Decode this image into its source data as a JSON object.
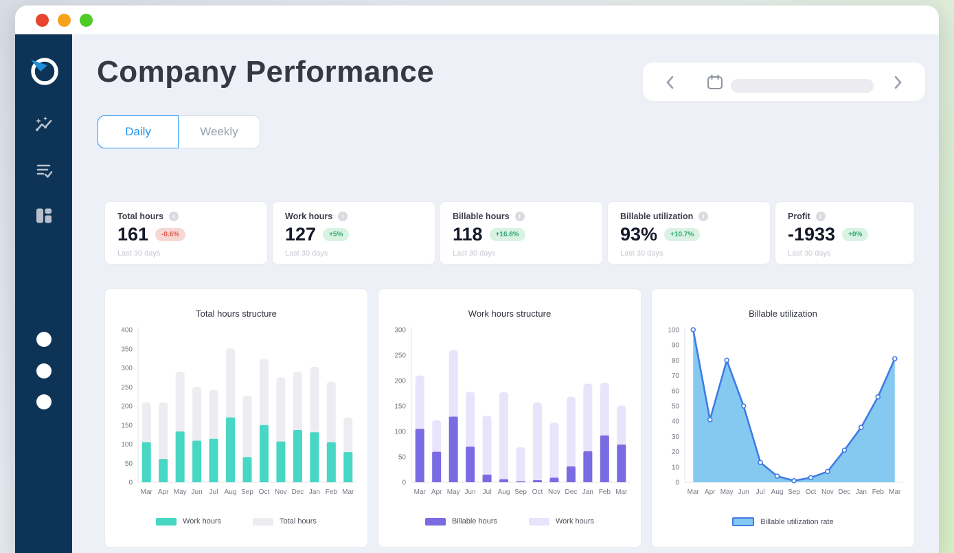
{
  "window": {
    "traffic_lights": [
      "#e8442f",
      "#f7a21b",
      "#4ecb25"
    ]
  },
  "icons": {
    "info_glyph": "i"
  },
  "colors": {
    "sidebar_bg": "#0d3456",
    "accent_blue": "#2196f3",
    "logo_needle": "#1e8fd5",
    "teal": "#47d7c4",
    "light_gray_bar": "#ededf1",
    "purple": "#7a6be3",
    "lavender": "#e9e4fb",
    "line_blue": "#3f7be4",
    "area_blue": "#85c9f1"
  },
  "header": {
    "title": "Company Performance"
  },
  "tabs": [
    {
      "label": "Daily",
      "active": true
    },
    {
      "label": "Weekly",
      "active": false
    }
  ],
  "sidebar": {
    "nav_items": [
      "insights",
      "tasks",
      "dashboard"
    ],
    "dot_count": 3
  },
  "kpi_cards": [
    {
      "label": "Total hours",
      "value": "161",
      "delta": "-0.6%",
      "direction": "down",
      "period": "Last 30 days"
    },
    {
      "label": "Work hours",
      "value": "127",
      "delta": "+5%",
      "direction": "up",
      "period": "Last 30 days"
    },
    {
      "label": "Billable hours",
      "value": "118",
      "delta": "+16.8%",
      "direction": "up",
      "period": "Last 30 days"
    },
    {
      "label": "Billable utilization",
      "value": "93%",
      "delta": "+10.7%",
      "direction": "up",
      "period": "Last 30 days"
    },
    {
      "label": "Profit",
      "value": "-1933",
      "delta": "+0%",
      "direction": "up",
      "period": "Last 30 days"
    }
  ],
  "chart_data": [
    {
      "type": "bar",
      "title": "Total hours structure",
      "categories": [
        "Mar",
        "Apr",
        "May",
        "Jun",
        "Jul",
        "Aug",
        "Sep",
        "Oct",
        "Nov",
        "Dec",
        "Jan",
        "Feb",
        "Mar"
      ],
      "series": [
        {
          "name": "Work hours",
          "color": "#47d7c4",
          "radius": 2,
          "values": [
            105,
            61,
            133,
            109,
            114,
            170,
            66,
            150,
            107,
            137,
            131,
            105,
            79
          ]
        },
        {
          "name": "Total hours",
          "color": "#ededf1",
          "radius": 5,
          "values": [
            210,
            210,
            290,
            250,
            242,
            351,
            227,
            323,
            275,
            290,
            303,
            264,
            170
          ]
        }
      ],
      "ylim": [
        0,
        400
      ],
      "ytick_step": 50,
      "grid": false,
      "legend_position": "bottom"
    },
    {
      "type": "bar",
      "title": "Work hours structure",
      "categories": [
        "Mar",
        "Apr",
        "May",
        "Jun",
        "Jul",
        "Aug",
        "Sep",
        "Oct",
        "Nov",
        "Dec",
        "Jan",
        "Feb",
        "Mar"
      ],
      "series": [
        {
          "name": "Billable hours",
          "color": "#7a6be3",
          "radius": 2,
          "values": [
            105,
            60,
            129,
            70,
            15,
            6,
            2,
            4,
            9,
            31,
            61,
            92,
            74
          ]
        },
        {
          "name": "Work hours",
          "color": "#e9e4fb",
          "radius": 5,
          "values": [
            210,
            122,
            260,
            178,
            131,
            177,
            69,
            157,
            117,
            168,
            194,
            196,
            151
          ]
        }
      ],
      "ylim": [
        0,
        300
      ],
      "ytick_step": 50,
      "grid": false,
      "legend_position": "bottom"
    },
    {
      "type": "area",
      "title": "Billable utilization",
      "categories": [
        "Mar",
        "Apr",
        "May",
        "Jun",
        "Jul",
        "Aug",
        "Sep",
        "Oct",
        "Nov",
        "Dec",
        "Jan",
        "Feb",
        "Mar"
      ],
      "series": [
        {
          "name": "Billable utilization rate",
          "line_color": "#3f7be4",
          "fill_color": "#85c9f1",
          "values": [
            100,
            41,
            80,
            50,
            13,
            4,
            1,
            3,
            7,
            21,
            36,
            56,
            81
          ]
        }
      ],
      "ylim": [
        0,
        100
      ],
      "ytick_step": 10,
      "grid": false,
      "legend_position": "bottom"
    }
  ]
}
